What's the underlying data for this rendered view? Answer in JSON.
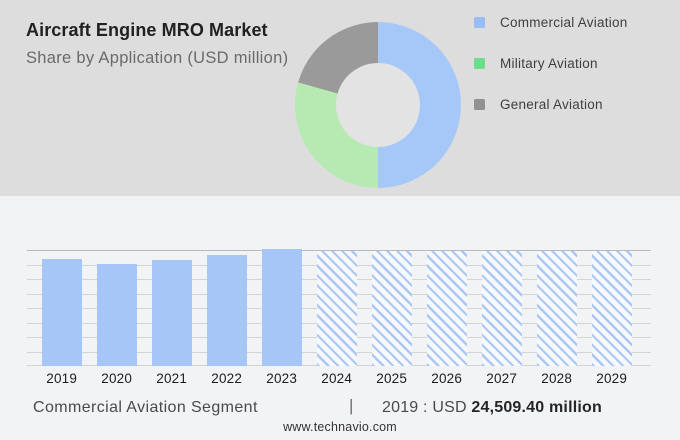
{
  "header": {
    "title": "Aircraft Engine MRO Market",
    "subtitle": "Share by Application (USD million)"
  },
  "legend": [
    {
      "label": "Commercial Aviation",
      "color": "#97bdf7"
    },
    {
      "label": "Military Aviation",
      "color": "#6bdd8b"
    },
    {
      "label": "General Aviation",
      "color": "#919191"
    }
  ],
  "chart_data": [
    {
      "type": "pie",
      "subtype": "donut",
      "title": "Share by Application (USD million)",
      "labels": [
        "Commercial Aviation",
        "Military Aviation",
        "General Aviation"
      ],
      "values_pct_estimated": [
        50,
        29.4,
        20.6
      ],
      "colors": [
        "#a6c8f8",
        "#b7eab3",
        "#9a9a9a"
      ],
      "legend_position": "right",
      "hole_color": "#e3e3e3"
    },
    {
      "type": "bar",
      "x": [
        "2019",
        "2020",
        "2021",
        "2022",
        "2023",
        "2024",
        "2025",
        "2026",
        "2027",
        "2028",
        "2029"
      ],
      "series": [
        {
          "name": "Commercial Aviation segment size",
          "relative_values": [
            91.5,
            86.9,
            90.6,
            94.9,
            100,
            98.6,
            98.6,
            98.6,
            98.6,
            98.6,
            98.6
          ],
          "forecast_mask": [
            false,
            false,
            false,
            false,
            false,
            true,
            true,
            true,
            true,
            true,
            true
          ]
        }
      ],
      "estimated_values_usd_million": [
        24509.4,
        23290,
        24280,
        25430,
        26800,
        26420,
        26420,
        26420,
        26420,
        26420,
        26420
      ],
      "known_point": {
        "x": "2019",
        "label": "USD 24,509.40 million"
      },
      "bar_color": "#a6c6f8",
      "forecast_style": "diagonal-hatch",
      "grid": true,
      "gridline_count": 9,
      "y_axis_labels_shown": false,
      "xlabel": "",
      "ylabel": ""
    }
  ],
  "caption": {
    "segment_label": "Commercial Aviation Segment",
    "separator": "|",
    "stat_prefix": "2019 : USD",
    "stat_value": "24,509.40 million"
  },
  "footer": {
    "website": "www.technavio.com"
  }
}
